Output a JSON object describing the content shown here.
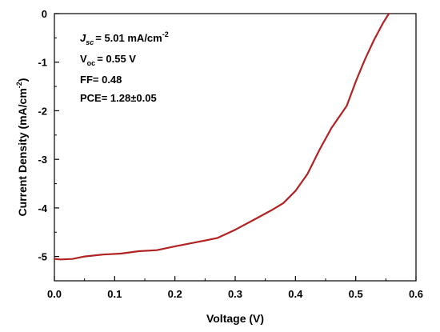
{
  "chart_data": {
    "type": "line",
    "xlabel": "Voltage (V)",
    "ylabel": "Current Density (mA/cm",
    "ylabel_sup": "-2",
    "ylabel_close": ")",
    "xlim": [
      0.0,
      0.6
    ],
    "ylim": [
      -5.5,
      0
    ],
    "xticks": [
      0.0,
      0.1,
      0.2,
      0.3,
      0.4,
      0.5,
      0.6
    ],
    "xtick_labels": [
      "0.0",
      "0.1",
      "0.2",
      "0.3",
      "0.4",
      "0.5",
      "0.6"
    ],
    "yticks": [
      0,
      -1,
      -2,
      -3,
      -4,
      -5
    ],
    "ytick_labels": [
      "0",
      "-1",
      "-2",
      "-3",
      "-4",
      "-5"
    ],
    "grid": false,
    "series": [
      {
        "color": "#b22222",
        "x": [
          0.0,
          0.01,
          0.03,
          0.05,
          0.08,
          0.11,
          0.14,
          0.17,
          0.2,
          0.23,
          0.27,
          0.3,
          0.33,
          0.36,
          0.38,
          0.4,
          0.42,
          0.44,
          0.46,
          0.485,
          0.5,
          0.515,
          0.53,
          0.545,
          0.555
        ],
        "y": [
          -5.05,
          -5.06,
          -5.05,
          -5.0,
          -4.96,
          -4.94,
          -4.89,
          -4.87,
          -4.79,
          -4.72,
          -4.62,
          -4.45,
          -4.25,
          -4.05,
          -3.9,
          -3.65,
          -3.3,
          -2.8,
          -2.35,
          -1.9,
          -1.4,
          -0.95,
          -0.55,
          -0.2,
          0.0
        ]
      }
    ],
    "annotations": {
      "jsc": {
        "sym": "J",
        "sub": "sc",
        "text": "= 5.01 mA/cm",
        "sup": "-2"
      },
      "voc": {
        "sym": "V",
        "sub": "oc",
        "text": "= 0.55 V"
      },
      "ff": {
        "text": "FF= 0.48"
      },
      "pce": {
        "text": "PCE= 1.28±0.05"
      }
    }
  }
}
